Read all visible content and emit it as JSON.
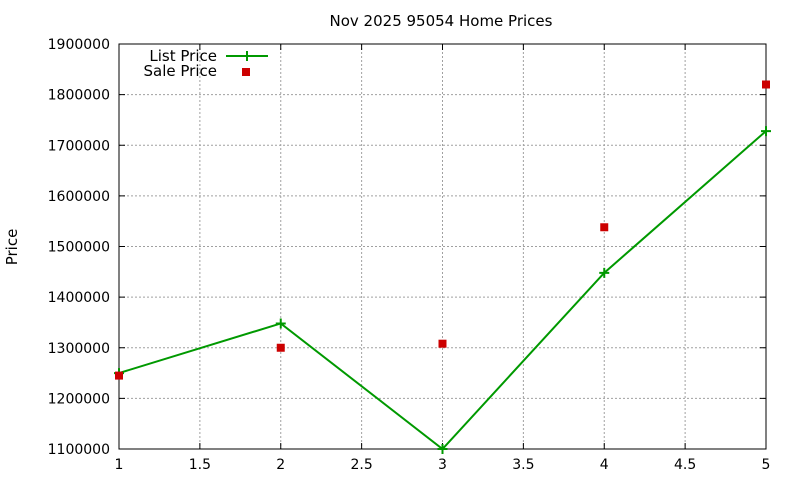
{
  "chart_data": {
    "type": "line",
    "title": "Nov 2025 95054 Home Prices",
    "xlabel": "",
    "ylabel": "Price",
    "xlim": [
      1,
      5
    ],
    "ylim": [
      1100000,
      1900000
    ],
    "x_ticks": [
      "1",
      "1.5",
      "2",
      "2.5",
      "3",
      "3.5",
      "4",
      "4.5",
      "5"
    ],
    "y_ticks": [
      "1100000",
      "1200000",
      "1300000",
      "1400000",
      "1500000",
      "1600000",
      "1700000",
      "1800000",
      "1900000"
    ],
    "grid": true,
    "legend_position": "top-left",
    "series": [
      {
        "name": "List Price",
        "style": "line+cross",
        "color": "#009900",
        "x": [
          1,
          2,
          3,
          4,
          5
        ],
        "values": [
          1250000,
          1348000,
          1100000,
          1448000,
          1728000
        ]
      },
      {
        "name": "Sale Price",
        "style": "square-marker",
        "color": "#cc0000",
        "x": [
          1,
          2,
          3,
          4,
          5
        ],
        "values": [
          1245000,
          1300000,
          1308000,
          1538000,
          1820000
        ]
      }
    ]
  }
}
